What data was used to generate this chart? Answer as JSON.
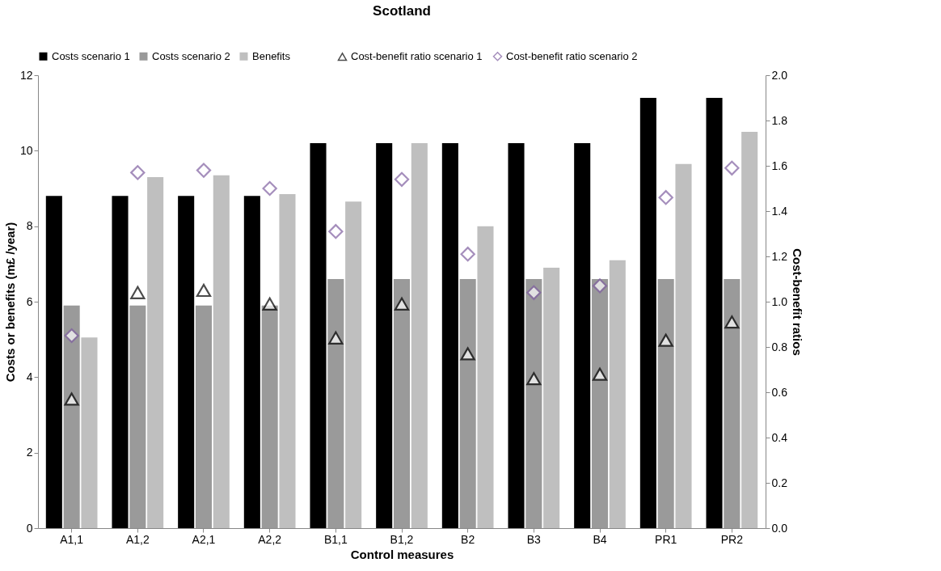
{
  "chart_data": {
    "type": "bar",
    "title": "Scotland",
    "xlabel": "Control measures",
    "ylabel": "Costs or benefits (m£ /year)",
    "y2label": "Cost-benefit ratios",
    "categories": [
      "A1,1",
      "A1,2",
      "A2,1",
      "A2,2",
      "B1,1",
      "B1,2",
      "B2",
      "B3",
      "B4",
      "PR1",
      "PR2"
    ],
    "series": [
      {
        "name": "Costs scenario 1",
        "color": "#000000",
        "values": [
          8.8,
          8.8,
          8.8,
          8.8,
          10.2,
          10.2,
          10.2,
          10.2,
          10.2,
          11.4,
          11.4
        ]
      },
      {
        "name": "Costs scenario 2",
        "color": "#9a9a9a",
        "values": [
          5.9,
          5.9,
          5.9,
          5.9,
          6.6,
          6.6,
          6.6,
          6.6,
          6.6,
          6.6,
          6.6
        ]
      },
      {
        "name": "Benefits",
        "color": "#bfbfbf",
        "values": [
          5.05,
          9.3,
          9.35,
          8.85,
          8.65,
          10.2,
          8.0,
          6.9,
          7.1,
          9.65,
          10.5
        ]
      },
      {
        "name": "Cost-benefit ratio scenario 1",
        "type": "scatter",
        "axis": "y2",
        "marker": "triangle",
        "color": "#000000",
        "values": [
          0.57,
          1.04,
          1.05,
          0.99,
          0.84,
          0.99,
          0.77,
          0.66,
          0.68,
          0.83,
          0.91
        ]
      },
      {
        "name": "Cost-benefit ratio scenario 2",
        "type": "scatter",
        "axis": "y2",
        "marker": "diamond",
        "color": "#7f5fa0",
        "values": [
          0.85,
          1.57,
          1.58,
          1.5,
          1.31,
          1.54,
          1.21,
          1.04,
          1.07,
          1.46,
          1.59
        ]
      }
    ],
    "ylim": [
      0,
      12
    ],
    "yticks": [
      0,
      2,
      4,
      6,
      8,
      10,
      12
    ],
    "y2lim": [
      0,
      2.0
    ],
    "y2ticks": [
      {
        "value": 0,
        "label": "0.0"
      },
      {
        "value": 0.2,
        "label": "0.2"
      },
      {
        "value": 0.4,
        "label": "0.4"
      },
      {
        "value": 0.6,
        "label": "0.6"
      },
      {
        "value": 0.8,
        "label": "0.8"
      },
      {
        "value": 1.0,
        "label": "1.0"
      },
      {
        "value": 1.2,
        "label": "1.2"
      },
      {
        "value": 1.4,
        "label": "1.4"
      },
      {
        "value": 1.6,
        "label": "1.6"
      },
      {
        "value": 1.8,
        "label": "1.8"
      },
      {
        "value": 2.0,
        "label": "2.0"
      }
    ],
    "grid": false,
    "legend": "top"
  }
}
